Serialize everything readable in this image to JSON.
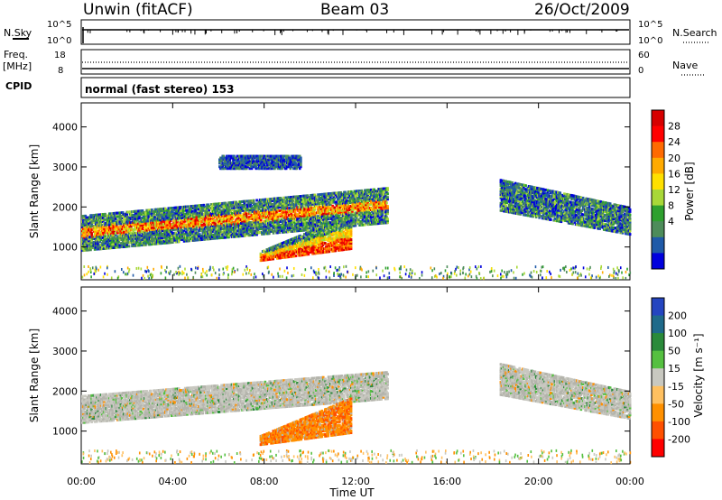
{
  "header": {
    "site": "Unwin (fitACF)",
    "beam": "Beam 03",
    "date": "26/Oct/2009"
  },
  "top_panel": {
    "left_label": "N.Sky",
    "left_ticks": [
      "10^5",
      "10^0"
    ],
    "right_label": "N.Search",
    "right_ticks": [
      "10^5",
      "10^0"
    ]
  },
  "freq_panel": {
    "left_label": "Freq.",
    "left_unit": "[MHz]",
    "left_ticks": [
      "18",
      "8"
    ],
    "right_label": "Nave",
    "right_ticks": [
      "60",
      "0"
    ]
  },
  "cpid": {
    "label": "CPID",
    "mode": "normal (fast stereo) 153"
  },
  "x_axis": {
    "label": "Time UT",
    "ticks": [
      "00:00",
      "04:00",
      "08:00",
      "12:00",
      "16:00",
      "20:00",
      "00:00"
    ]
  },
  "chart_data": [
    {
      "type": "heatmap",
      "name": "power-panel",
      "ylabel": "Slant Range [km]",
      "yticks": [
        "1000",
        "2000",
        "3000",
        "4000"
      ],
      "ylim": [
        180,
        4600
      ],
      "xlim_hours": [
        0,
        24
      ],
      "colorbar": {
        "label": "Power [dB]",
        "ticks": [
          "28",
          "24",
          "20",
          "16",
          "12",
          "8",
          "4"
        ],
        "colors": [
          "#d60000",
          "#ff0000",
          "#ff6a00",
          "#ffaa00",
          "#ffe000",
          "#a8d838",
          "#2ea02e",
          "#4d8c5a",
          "#1f5aa8",
          "#0000dd"
        ]
      },
      "regions": [
        {
          "t0": 0.0,
          "t1": 13.4,
          "r0": 700,
          "r1": 2500,
          "level": "strong-band"
        },
        {
          "t0": 7.8,
          "t1": 11.8,
          "r0": 650,
          "r1": 1850,
          "level": "very-strong"
        },
        {
          "t0": 6.0,
          "t1": 9.6,
          "r0": 2900,
          "r1": 3350,
          "level": "weak"
        },
        {
          "t0": 18.3,
          "t1": 24.0,
          "r0": 1200,
          "r1": 2800,
          "level": "moderate"
        }
      ]
    },
    {
      "type": "heatmap",
      "name": "velocity-panel",
      "ylabel": "Slant Range [km]",
      "yticks": [
        "1000",
        "2000",
        "3000",
        "4000"
      ],
      "ylim": [
        180,
        4600
      ],
      "xlim_hours": [
        0,
        24
      ],
      "colorbar": {
        "label": "Velocity [m s⁻¹]",
        "ticks": [
          "200",
          "100",
          "50",
          "15",
          "-15",
          "-50",
          "-100",
          "-200"
        ],
        "colors": [
          "#2445c0",
          "#1f6a8a",
          "#2a8a3a",
          "#55c040",
          "#c8c8c0",
          "#ffc060",
          "#ff9000",
          "#ff5000",
          "#ff0000"
        ]
      },
      "regions": [
        {
          "t0": 0.0,
          "t1": 13.4,
          "r0": 1100,
          "r1": 2500,
          "level": "ground-scatter"
        },
        {
          "t0": 7.8,
          "t1": 11.8,
          "r0": 650,
          "r1": 1850,
          "level": "negative-velocity"
        },
        {
          "t0": 18.3,
          "t1": 24.0,
          "r0": 1200,
          "r1": 2800,
          "level": "ground-scatter"
        }
      ]
    }
  ]
}
